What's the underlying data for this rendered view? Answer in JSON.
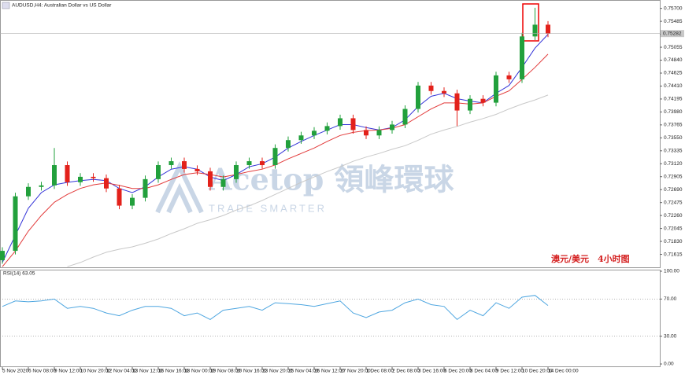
{
  "chart_data": [
    {
      "type": "candlestick",
      "title": "AUDUSD,H4: Australian Dollar vs US Dollar",
      "annotation": "澳元/美元　4小时图",
      "watermark": "Acetop 領峰環球",
      "watermark_sub": "TRADE SMARTER",
      "open": [
        0.71518,
        0.71673,
        0.72579,
        0.72735,
        0.7276,
        0.73097,
        0.72813,
        0.72903,
        0.7288,
        0.72709,
        0.72424,
        0.72554,
        0.72864,
        0.73097,
        0.73162,
        0.73033,
        0.72994,
        0.72735,
        0.72864,
        0.73097,
        0.73162,
        0.73097,
        0.73382,
        0.73512,
        0.7359,
        0.73667,
        0.73745,
        0.73875,
        0.7368,
        0.7359,
        0.7368,
        0.73771,
        0.7403,
        0.74418,
        0.74328,
        0.74289,
        0.74004,
        0.74198,
        0.74134,
        0.74587,
        0.74522,
        0.75234,
        0.75429
      ],
      "high": [
        0.71733,
        0.72639,
        0.72795,
        0.7282,
        0.73382,
        0.73157,
        0.72963,
        0.72963,
        0.7294,
        0.72769,
        0.72614,
        0.72924,
        0.73157,
        0.73222,
        0.73222,
        0.73093,
        0.73054,
        0.72924,
        0.73157,
        0.73222,
        0.73222,
        0.73442,
        0.73572,
        0.7365,
        0.73727,
        0.73805,
        0.73935,
        0.73935,
        0.7374,
        0.7374,
        0.73831,
        0.7409,
        0.74478,
        0.74478,
        0.74388,
        0.74349,
        0.74258,
        0.74258,
        0.74647,
        0.74647,
        0.75294,
        0.7571,
        0.75489
      ],
      "low": [
        0.71458,
        0.71613,
        0.72519,
        0.72675,
        0.727,
        0.72753,
        0.72753,
        0.7282,
        0.72649,
        0.72364,
        0.72364,
        0.72494,
        0.72804,
        0.73037,
        0.72973,
        0.72934,
        0.72675,
        0.72675,
        0.72804,
        0.73037,
        0.73037,
        0.73037,
        0.73322,
        0.73452,
        0.7353,
        0.73607,
        0.73685,
        0.7362,
        0.7353,
        0.7353,
        0.7362,
        0.73711,
        0.7397,
        0.74268,
        0.74229,
        0.73745,
        0.73944,
        0.74074,
        0.74074,
        0.74462,
        0.74462,
        0.75174,
        0.75222
      ],
      "close": [
        0.71673,
        0.72579,
        0.72735,
        0.7276,
        0.73097,
        0.72813,
        0.72903,
        0.7288,
        0.72709,
        0.72424,
        0.72554,
        0.72864,
        0.73097,
        0.73162,
        0.73033,
        0.72994,
        0.72735,
        0.72864,
        0.73097,
        0.73162,
        0.73097,
        0.73382,
        0.73512,
        0.7359,
        0.73667,
        0.73745,
        0.73875,
        0.7368,
        0.7359,
        0.7368,
        0.73771,
        0.7403,
        0.74418,
        0.74328,
        0.74289,
        0.74004,
        0.74198,
        0.74134,
        0.74587,
        0.74522,
        0.75234,
        0.75429,
        0.75282
      ],
      "up_color": "#22a03c",
      "down_color": "#e3211b",
      "series": [
        {
          "color": "#3535d8",
          "values": [
            0.7148,
            0.7193,
            0.7238,
            0.7264,
            0.7277,
            0.7281,
            0.7284,
            0.7286,
            0.7284,
            0.7271,
            0.7264,
            0.7274,
            0.729,
            0.7303,
            0.7307,
            0.7303,
            0.729,
            0.7284,
            0.7294,
            0.7307,
            0.7312,
            0.7323,
            0.7338,
            0.7349,
            0.7359,
            0.7368,
            0.7377,
            0.7377,
            0.7372,
            0.7368,
            0.7372,
            0.7385,
            0.7407,
            0.7424,
            0.7429,
            0.742,
            0.7416,
            0.7413,
            0.7429,
            0.7442,
            0.7472,
            0.7504,
            0.7527
          ]
        },
        {
          "color": "#e23a3a",
          "values": [
            0.7141,
            0.7167,
            0.72,
            0.7226,
            0.7248,
            0.7261,
            0.7271,
            0.7277,
            0.728,
            0.7276,
            0.7271,
            0.7271,
            0.7277,
            0.7286,
            0.7294,
            0.7297,
            0.7294,
            0.729,
            0.7294,
            0.7299,
            0.7303,
            0.731,
            0.732,
            0.7329,
            0.7338,
            0.7349,
            0.7359,
            0.7364,
            0.7367,
            0.7368,
            0.7371,
            0.7377,
            0.739,
            0.7403,
            0.7413,
            0.7413,
            0.7411,
            0.7413,
            0.7424,
            0.7433,
            0.7452,
            0.7472,
            0.7494
          ]
        },
        {
          "color": "#c8c8c8",
          "values": [
            null,
            null,
            null,
            null,
            null,
            0.7141,
            0.7148,
            0.7157,
            0.7165,
            0.717,
            0.7174,
            0.718,
            0.7187,
            0.7196,
            0.7204,
            0.7213,
            0.7219,
            0.7226,
            0.7235,
            0.7242,
            0.7251,
            0.7261,
            0.7271,
            0.7281,
            0.729,
            0.7299,
            0.7307,
            0.7316,
            0.7323,
            0.7329,
            0.7336,
            0.7342,
            0.7351,
            0.7361,
            0.7368,
            0.7374,
            0.7381,
            0.7387,
            0.7394,
            0.7403,
            0.7411,
            0.7418,
            0.7426
          ]
        }
      ],
      "ylim": [
        0.714,
        0.758
      ],
      "yticks": [
        {
          "value": 0.757,
          "label": "0.75700"
        },
        {
          "value": 0.75485,
          "label": "0.75485"
        },
        {
          "value": 0.7527,
          "label": "0.75270"
        },
        {
          "value": 0.75055,
          "label": "0.75055"
        },
        {
          "value": 0.7484,
          "label": "0.74840"
        },
        {
          "value": 0.74625,
          "label": "0.74625"
        },
        {
          "value": 0.7441,
          "label": "0.74410"
        },
        {
          "value": 0.74195,
          "label": "0.74195"
        },
        {
          "value": 0.7398,
          "label": "0.73980"
        },
        {
          "value": 0.73765,
          "label": "0.73765"
        },
        {
          "value": 0.7355,
          "label": "0.73550"
        },
        {
          "value": 0.73335,
          "label": "0.73335"
        },
        {
          "value": 0.7312,
          "label": "0.73120"
        },
        {
          "value": 0.72905,
          "label": "0.72905"
        },
        {
          "value": 0.7269,
          "label": "0.72690"
        },
        {
          "value": 0.72475,
          "label": "0.72475"
        },
        {
          "value": 0.7226,
          "label": "0.72260"
        },
        {
          "value": 0.72045,
          "label": "0.72045"
        },
        {
          "value": 0.7183,
          "label": "0.71830"
        },
        {
          "value": 0.71615,
          "label": "0.71615"
        }
      ],
      "current_price": {
        "value": 0.75282,
        "label": "0.75282"
      },
      "xticks": [
        {
          "value": 0,
          "label": "5 Nov 2020"
        },
        {
          "value": 2,
          "label": "6 Nov 08:00"
        },
        {
          "value": 4,
          "label": "9 Nov 12:00"
        },
        {
          "value": 6,
          "label": "10 Nov 20:00"
        },
        {
          "value": 8,
          "label": "12 Nov 04:00"
        },
        {
          "value": 10,
          "label": "13 Nov 12:00"
        },
        {
          "value": 12,
          "label": "16 Nov 16:00"
        },
        {
          "value": 14,
          "label": "18 Nov 00:00"
        },
        {
          "value": 16,
          "label": "19 Nov 08:00"
        },
        {
          "value": 18,
          "label": "20 Nov 16:00"
        },
        {
          "value": 20,
          "label": "23 Nov 20:00"
        },
        {
          "value": 22,
          "label": "25 Nov 04:00"
        },
        {
          "value": 24,
          "label": "26 Nov 12:00"
        },
        {
          "value": 26,
          "label": "27 Nov 20:00"
        },
        {
          "value": 28,
          "label": "1 Dec 08:00"
        },
        {
          "value": 30,
          "label": "2 Dec 08:00"
        },
        {
          "value": 32,
          "label": "3 Dec 16:00"
        },
        {
          "value": 34,
          "label": "6 Dec 20:00"
        },
        {
          "value": 36,
          "label": "8 Dec 04:00"
        },
        {
          "value": 38,
          "label": "9 Dec 12:00"
        },
        {
          "value": 40,
          "label": "10 Dec 20:00"
        },
        {
          "value": 42,
          "label": "14 Dec 00:00"
        }
      ]
    },
    {
      "type": "line",
      "title": "RSI(14) 63.05",
      "series": [
        {
          "color": "#4ea6e0",
          "values": [
            62,
            68,
            67,
            68,
            70,
            60,
            62,
            60,
            55,
            52,
            58,
            62,
            62,
            60,
            52,
            55,
            48,
            58,
            60,
            62,
            58,
            66,
            65,
            64,
            62,
            65,
            68,
            55,
            50,
            56,
            58,
            66,
            70,
            64,
            62,
            48,
            58,
            52,
            66,
            60,
            72,
            74,
            63.05
          ]
        }
      ],
      "ylim": [
        0,
        100
      ],
      "yticks": [
        {
          "value": 100,
          "label": "100.00"
        },
        {
          "value": 70,
          "label": "70.00"
        },
        {
          "value": 30,
          "label": "30.00"
        },
        {
          "value": 0,
          "label": "0.00"
        }
      ],
      "levels": [
        70,
        30
      ]
    }
  ]
}
